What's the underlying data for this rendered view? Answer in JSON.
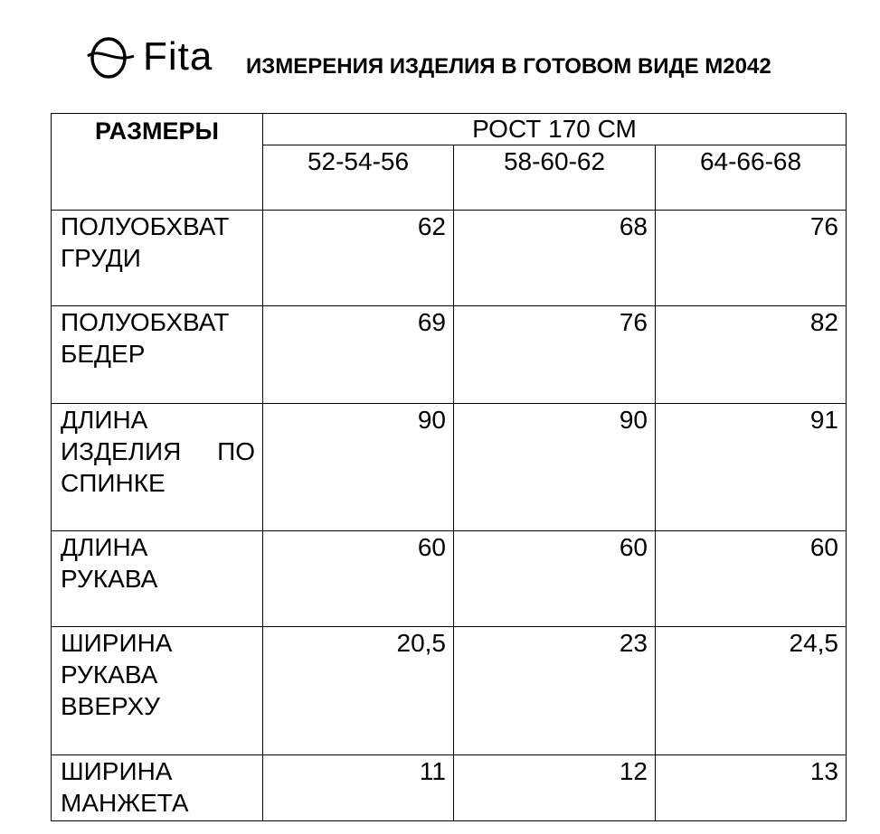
{
  "header": {
    "logo_text": "Fita",
    "title": "ИЗМЕРЕНИЯ ИЗДЕЛИЯ В ГОТОВОМ ВИДЕ М2042"
  },
  "table": {
    "sizes_label": "РАЗМЕРЫ",
    "growth": "РОСТ 170 СМ",
    "columns": [
      "52-54-56",
      "58-60-62",
      "64-66-68"
    ],
    "rows": [
      {
        "label": [
          "ПОЛУОБХВАТ",
          "ГРУДИ"
        ],
        "values": [
          "62",
          "68",
          "76"
        ]
      },
      {
        "label": [
          "ПОЛУОБХВАТ",
          "БЕДЕР"
        ],
        "values": [
          "69",
          "76",
          "82"
        ]
      },
      {
        "label": [
          "ДЛИНА",
          "ИЗДЕЛИЯ ПО",
          "СПИНКЕ"
        ],
        "values": [
          "90",
          "90",
          "91"
        ]
      },
      {
        "label": [
          "ДЛИНА",
          "РУКАВА"
        ],
        "values": [
          "60",
          "60",
          "60"
        ]
      },
      {
        "label": [
          "ШИРИНА",
          "РУКАВА",
          "ВВЕРХУ"
        ],
        "values": [
          "20,5",
          "23",
          "24,5"
        ]
      },
      {
        "label": [
          "ШИРИНА",
          "МАНЖЕТА"
        ],
        "values": [
          "11",
          "12",
          "13"
        ]
      }
    ]
  }
}
